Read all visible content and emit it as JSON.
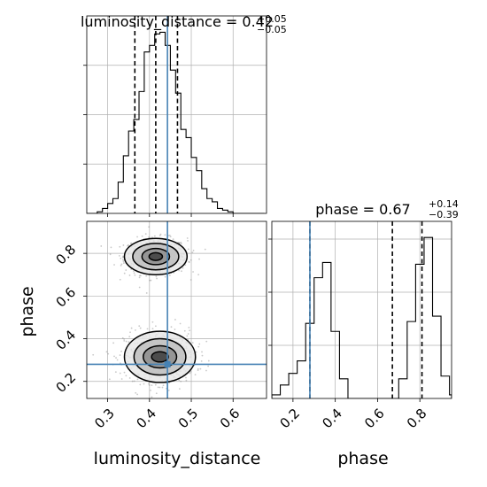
{
  "chart_data": [
    {
      "type": "histogram",
      "panel": "luminosity_distance-marginal",
      "title": {
        "prefix": "luminosity_distance = ",
        "value": "0.42",
        "plus": "+0.05",
        "minus": "−0.05"
      },
      "xlim": [
        0.25,
        0.68
      ],
      "x_ticks": [
        0.3,
        0.4,
        0.5,
        0.6
      ],
      "x_tick_labels": [
        "0.3",
        "0.4",
        "0.5",
        "0.6"
      ],
      "xlabel": "luminosity_distance",
      "bin_edges": [
        0.25,
        0.2625,
        0.275,
        0.2875,
        0.3,
        0.3125,
        0.325,
        0.3375,
        0.35,
        0.3625,
        0.375,
        0.3875,
        0.4,
        0.4125,
        0.425,
        0.4375,
        0.45,
        0.4625,
        0.475,
        0.4875,
        0.5,
        0.5125,
        0.525,
        0.5375,
        0.55,
        0.5625,
        0.575,
        0.5875,
        0.6,
        0.6125,
        0.625,
        0.6375,
        0.65,
        0.6625,
        0.675
      ],
      "counts": [
        0,
        0,
        1,
        3,
        6,
        9,
        19,
        35,
        50,
        57,
        74,
        98,
        102,
        109,
        110,
        102,
        87,
        73,
        51,
        46,
        34,
        26,
        15,
        9,
        7,
        3,
        2,
        1,
        0,
        0,
        0,
        0,
        0,
        0
      ],
      "quantile_lines": [
        0.365,
        0.415,
        0.467
      ],
      "truth": 0.443
    },
    {
      "type": "histogram",
      "panel": "phase-marginal",
      "title": {
        "prefix": "phase = ",
        "value": "0.67",
        "plus": "+0.14",
        "minus": "−0.39"
      },
      "xlim": [
        0.1,
        0.95
      ],
      "x_ticks": [
        0.2,
        0.4,
        0.6,
        0.8
      ],
      "x_tick_labels": [
        "0.2",
        "0.4",
        "0.6",
        "0.8"
      ],
      "xlabel": "phase",
      "bin_edges": [
        0.1,
        0.12,
        0.14,
        0.16,
        0.18,
        0.2,
        0.22,
        0.24,
        0.26,
        0.28,
        0.3,
        0.32,
        0.34,
        0.36,
        0.38,
        0.4,
        0.42,
        0.44,
        0.46,
        0.48,
        0.5,
        0.52,
        0.54,
        0.56,
        0.58,
        0.6,
        0.62,
        0.64,
        0.66,
        0.68,
        0.7,
        0.72,
        0.74,
        0.76,
        0.78,
        0.8,
        0.82,
        0.84,
        0.86,
        0.88,
        0.9,
        0.92,
        0.94,
        0.95
      ],
      "counts": [
        4,
        4,
        15,
        15,
        28,
        28,
        42,
        42,
        84,
        84,
        135,
        135,
        152,
        152,
        75,
        75,
        22,
        22,
        0,
        0,
        0,
        0,
        0,
        0,
        0,
        0,
        0,
        0,
        0,
        0,
        22,
        22,
        86,
        86,
        150,
        150,
        180,
        180,
        92,
        92,
        25,
        25,
        4
      ],
      "quantile_lines": [
        0.28,
        0.67,
        0.81
      ],
      "truth": 0.28
    },
    {
      "type": "contour",
      "panel": "luminosity_distance-vs-phase",
      "xlim": [
        0.25,
        0.68
      ],
      "ylim": [
        0.12,
        0.95
      ],
      "x_ticks": [
        0.3,
        0.4,
        0.5,
        0.6
      ],
      "x_tick_labels": [
        "0.3",
        "0.4",
        "0.5",
        "0.6"
      ],
      "y_ticks": [
        0.2,
        0.4,
        0.6,
        0.8
      ],
      "y_tick_labels": [
        "0.2",
        "0.4",
        "0.6",
        "0.8"
      ],
      "xlabel": "luminosity_distance",
      "ylabel": "phase",
      "modes": [
        {
          "x_center": 0.415,
          "y_center": 0.785,
          "contours": [
            {
              "rx": 0.075,
              "ry": 0.085
            },
            {
              "rx": 0.055,
              "ry": 0.062
            },
            {
              "rx": 0.033,
              "ry": 0.038
            },
            {
              "rx": 0.016,
              "ry": 0.018
            }
          ]
        },
        {
          "x_center": 0.425,
          "y_center": 0.315,
          "contours": [
            {
              "rx": 0.085,
              "ry": 0.12
            },
            {
              "rx": 0.062,
              "ry": 0.085
            },
            {
              "rx": 0.04,
              "ry": 0.052
            },
            {
              "rx": 0.02,
              "ry": 0.024
            }
          ]
        }
      ],
      "truth": {
        "x": 0.443,
        "y": 0.28
      }
    }
  ],
  "colors": {
    "truth": "#4682b4",
    "hist": "#000000",
    "grid": "#b0b0b0"
  }
}
